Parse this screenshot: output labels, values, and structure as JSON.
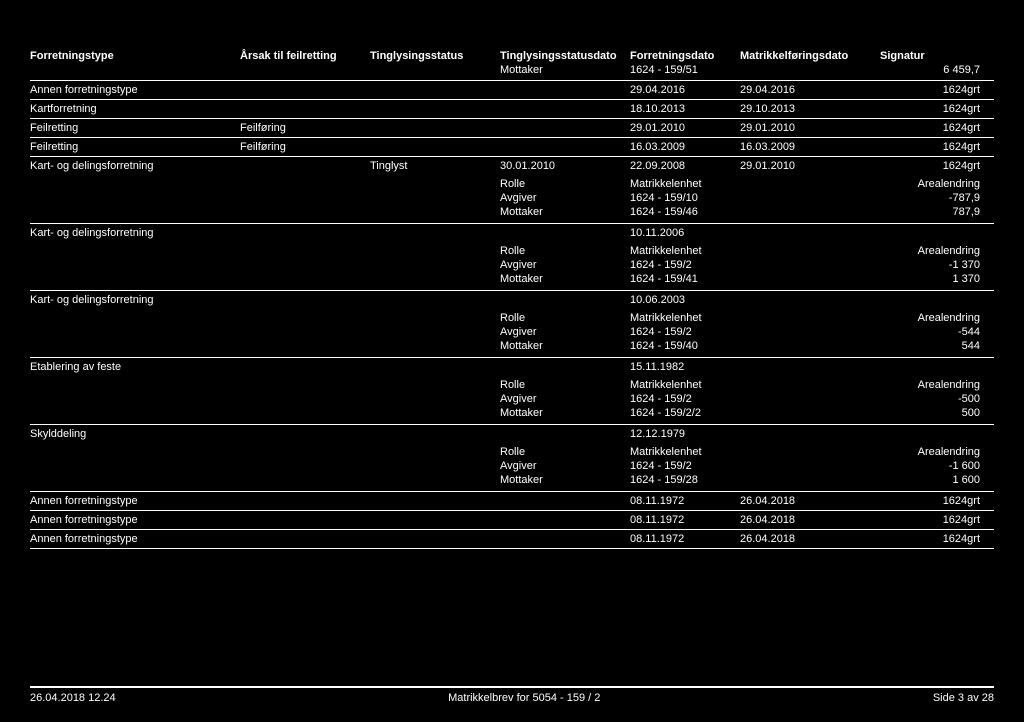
{
  "headers": {
    "c1": "Forretningstype",
    "c2": "Årsak til feilretting",
    "c3": "Tinglysingsstatus",
    "c4": "Tinglysingsstatusdato",
    "c5": "Forretningsdato",
    "c6": "Matrikkelføringsdato",
    "c7": "Signatur"
  },
  "subheader": {
    "c4": "Mottaker",
    "c5": "1624 - 159/51",
    "c7": "6 459,7"
  },
  "rows": [
    {
      "c1": "Annen forretningstype",
      "c2": "",
      "c3": "",
      "c4": "",
      "c5": "29.04.2016",
      "c6": "29.04.2016",
      "c7": "1624grt"
    },
    {
      "c1": "Kartforretning",
      "c2": "",
      "c3": "",
      "c4": "",
      "c5": "18.10.2013",
      "c6": "29.10.2013",
      "c7": "1624grt"
    },
    {
      "c1": "Feilretting",
      "c2": "Feilføring",
      "c3": "",
      "c4": "",
      "c5": "29.01.2010",
      "c6": "29.01.2010",
      "c7": "1624grt"
    },
    {
      "c1": "Feilretting",
      "c2": "Feilføring",
      "c3": "",
      "c4": "",
      "c5": "16.03.2009",
      "c6": "16.03.2009",
      "c7": "1624grt"
    }
  ],
  "blocks": [
    {
      "main": {
        "c1": "Kart- og delingsforretning",
        "c2": "",
        "c3": "Tinglyst",
        "c4": "30.01.2010",
        "c5": "22.09.2008",
        "c6": "29.01.2010",
        "c7": "1624grt"
      },
      "subhead": {
        "s2": "Rolle",
        "s3": "Matrikkelenhet",
        "s4": "Arealendring"
      },
      "subrows": [
        {
          "s2": "Avgiver",
          "s3": "1624 - 159/10",
          "s4": "-787,9"
        },
        {
          "s2": "Mottaker",
          "s3": "1624 - 159/46",
          "s4": "787,9"
        }
      ]
    },
    {
      "main": {
        "c1": "Kart- og delingsforretning",
        "c2": "",
        "c3": "",
        "c4": "",
        "c5": "10.11.2006",
        "c6": "",
        "c7": ""
      },
      "subhead": {
        "s2": "Rolle",
        "s3": "Matrikkelenhet",
        "s4": "Arealendring"
      },
      "subrows": [
        {
          "s2": "Avgiver",
          "s3": "1624 - 159/2",
          "s4": "-1 370"
        },
        {
          "s2": "Mottaker",
          "s3": "1624 - 159/41",
          "s4": "1 370"
        }
      ]
    },
    {
      "main": {
        "c1": "Kart- og delingsforretning",
        "c2": "",
        "c3": "",
        "c4": "",
        "c5": "10.06.2003",
        "c6": "",
        "c7": ""
      },
      "subhead": {
        "s2": "Rolle",
        "s3": "Matrikkelenhet",
        "s4": "Arealendring"
      },
      "subrows": [
        {
          "s2": "Avgiver",
          "s3": "1624 - 159/2",
          "s4": "-544"
        },
        {
          "s2": "Mottaker",
          "s3": "1624 - 159/40",
          "s4": "544"
        }
      ]
    },
    {
      "main": {
        "c1": "Etablering av feste",
        "c2": "",
        "c3": "",
        "c4": "",
        "c5": "15.11.1982",
        "c6": "",
        "c7": ""
      },
      "subhead": {
        "s2": "Rolle",
        "s3": "Matrikkelenhet",
        "s4": "Arealendring"
      },
      "subrows": [
        {
          "s2": "Avgiver",
          "s3": "1624 - 159/2",
          "s4": "-500"
        },
        {
          "s2": "Mottaker",
          "s3": "1624 - 159/2/2",
          "s4": "500"
        }
      ]
    },
    {
      "main": {
        "c1": "Skylddeling",
        "c2": "",
        "c3": "",
        "c4": "",
        "c5": "12.12.1979",
        "c6": "",
        "c7": ""
      },
      "subhead": {
        "s2": "Rolle",
        "s3": "Matrikkelenhet",
        "s4": "Arealendring"
      },
      "subrows": [
        {
          "s2": "Avgiver",
          "s3": "1624 - 159/2",
          "s4": "-1 600"
        },
        {
          "s2": "Mottaker",
          "s3": "1624 - 159/28",
          "s4": "1 600"
        }
      ]
    }
  ],
  "bottomrows": [
    {
      "c1": "Annen forretningstype",
      "c2": "",
      "c3": "",
      "c4": "",
      "c5": "08.11.1972",
      "c6": "26.04.2018",
      "c7": "1624grt"
    },
    {
      "c1": "Annen forretningstype",
      "c2": "",
      "c3": "",
      "c4": "",
      "c5": "08.11.1972",
      "c6": "26.04.2018",
      "c7": "1624grt"
    },
    {
      "c1": "Annen forretningstype",
      "c2": "",
      "c3": "",
      "c4": "",
      "c5": "08.11.1972",
      "c6": "26.04.2018",
      "c7": "1624grt"
    }
  ],
  "footer": {
    "left": "26.04.2018 12.24",
    "center": "Matrikkelbrev for 5054 - 159 / 2",
    "right": "Side 3 av 28"
  }
}
